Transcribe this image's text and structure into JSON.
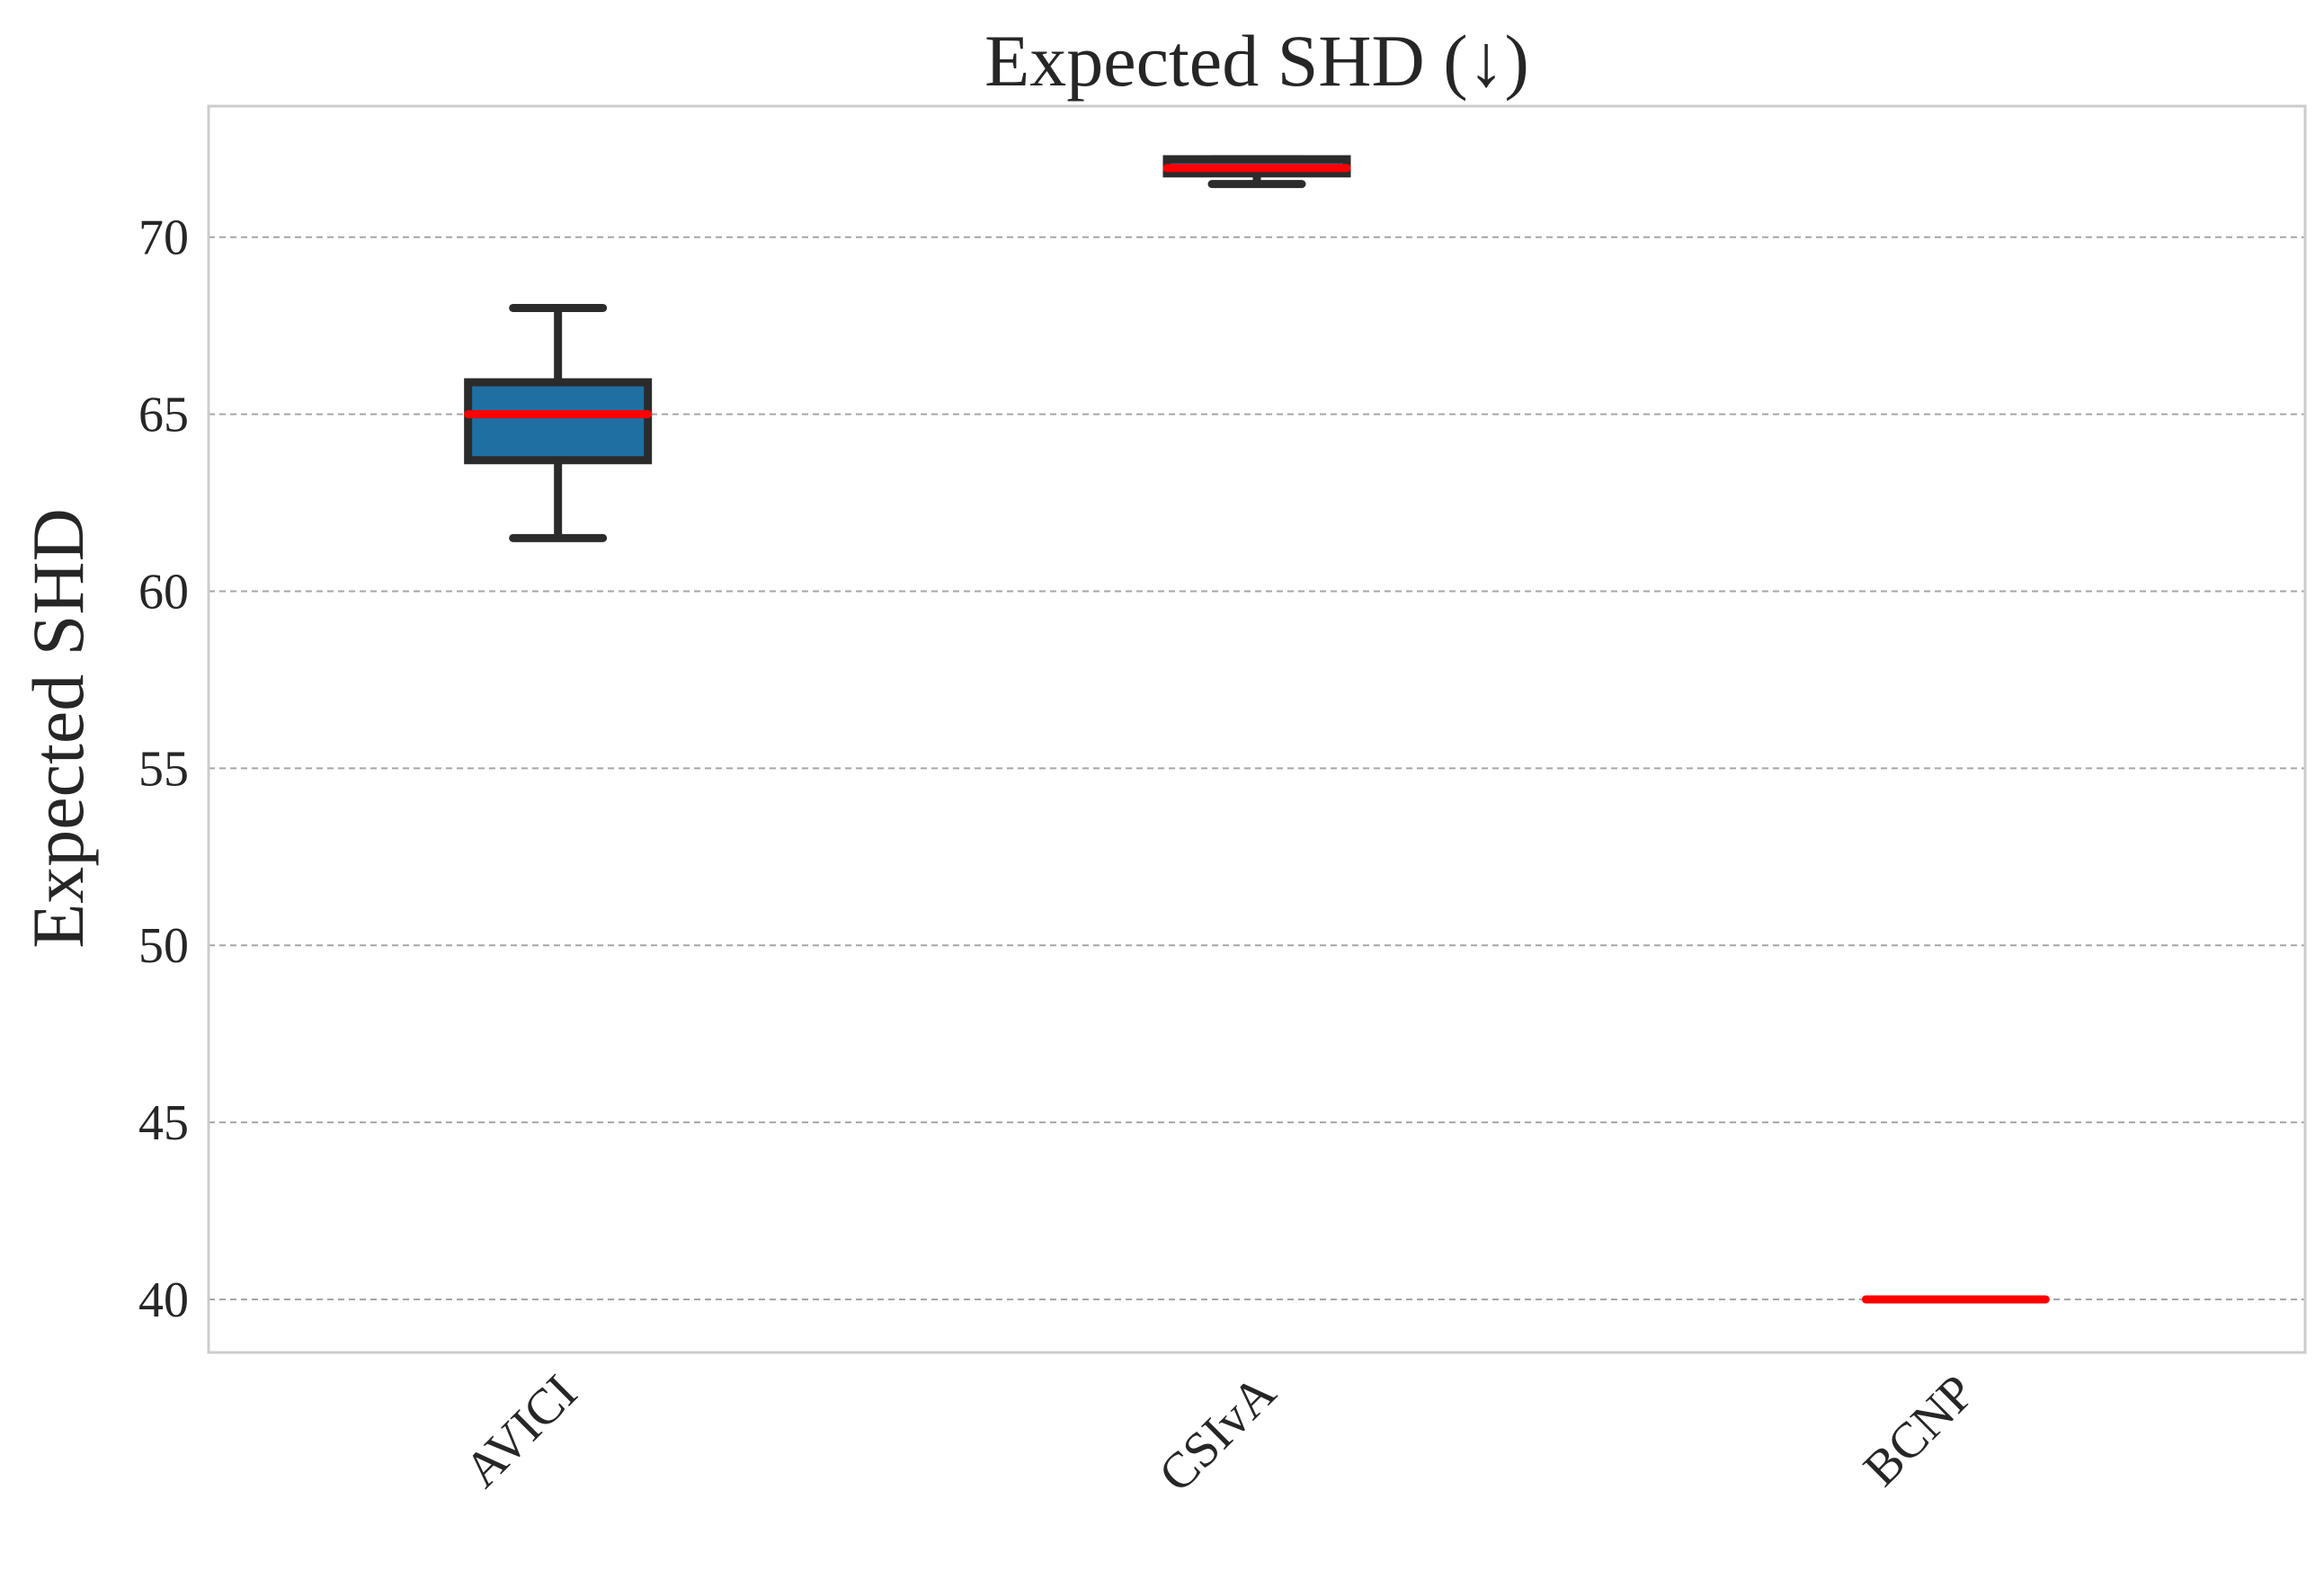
{
  "chart_data": {
    "type": "box",
    "title": "Expected SHD (↓)",
    "xlabel": "",
    "ylabel": "Expected SHD",
    "ylim": [
      38.5,
      73.7
    ],
    "yticks": [
      40,
      45,
      50,
      55,
      60,
      65,
      70
    ],
    "grid": "horizontal dashed",
    "categories": [
      "AVICI",
      "CSIvA",
      "BCNP"
    ],
    "boxes": [
      {
        "category": "AVICI",
        "whisker_low": 61.5,
        "q1": 63.7,
        "median": 65.0,
        "q3": 65.9,
        "whisker_high": 68.0
      },
      {
        "category": "CSIvA",
        "whisker_low": 71.5,
        "q1": 71.8,
        "median": 71.95,
        "q3": 72.2,
        "whisker_high": 72.2
      },
      {
        "category": "BCNP",
        "whisker_low": 40.0,
        "q1": 40.0,
        "median": 40.0,
        "q3": 40.0,
        "whisker_high": 40.0
      }
    ],
    "colors": {
      "box_fill": "#1f6fa3",
      "box_edge": "#2b2b2b",
      "median": "#ff0000",
      "grid": "#a6a6a6",
      "frame": "#cccccc"
    }
  }
}
